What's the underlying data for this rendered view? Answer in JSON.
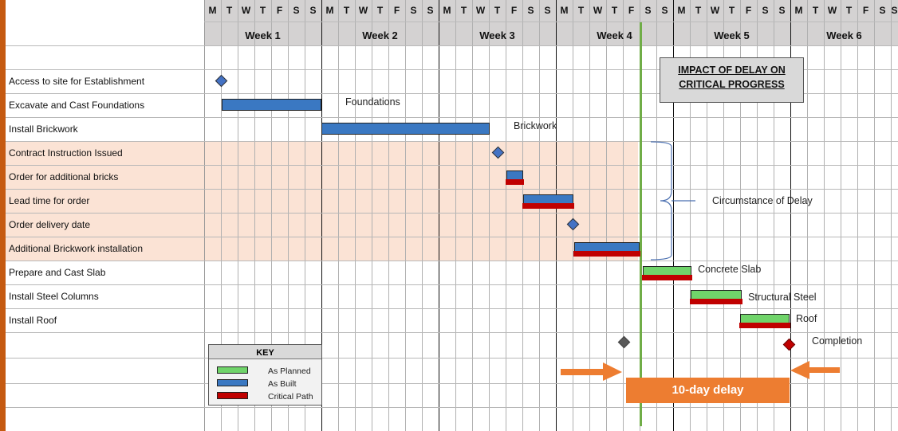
{
  "header": {
    "day_letters": [
      "M",
      "T",
      "W",
      "T",
      "F",
      "S",
      "S"
    ],
    "weeks": [
      "Week 1",
      "Week 2",
      "Week 3",
      "Week 4",
      "Week 5",
      "Week 6"
    ]
  },
  "tasks": [
    {
      "label": "Access to site for Establishment",
      "type": "milestone",
      "at": 1.05,
      "color": "#4472c4",
      "highlight": false
    },
    {
      "label": "Excavate and Cast Foundations",
      "type": "bar",
      "start": 1.05,
      "end": 7,
      "kind": "as_built",
      "annotation": "Foundations",
      "highlight": false
    },
    {
      "label": "Install Brickwork",
      "type": "bar",
      "start": 7,
      "end": 17.05,
      "kind": "as_built",
      "annotation": "Brickwork",
      "highlight": false
    },
    {
      "label": "Contract Instruction Issued",
      "type": "milestone",
      "at": 17.55,
      "color": "#4472c4",
      "highlight": true
    },
    {
      "label": "Order for additional bricks",
      "type": "bar",
      "start": 18.05,
      "end": 19.05,
      "kind": "as_built_critical",
      "highlight": true
    },
    {
      "label": "Lead time for order",
      "type": "bar",
      "start": 19.05,
      "end": 22.05,
      "kind": "as_built_critical",
      "highlight": true
    },
    {
      "label": "Order delivery date",
      "type": "milestone",
      "at": 22.05,
      "color": "#4472c4",
      "highlight": true
    },
    {
      "label": "Additional Brickwork installation",
      "type": "bar",
      "start": 22.1,
      "end": 26,
      "kind": "as_built_critical",
      "highlight": true
    },
    {
      "label": "Prepare and Cast Slab",
      "type": "bar",
      "start": 26.2,
      "end": 29.1,
      "kind": "planned_critical",
      "annotation": "Concrete Slab",
      "highlight": false
    },
    {
      "label": "Install Steel Columns",
      "type": "bar",
      "start": 29.05,
      "end": 32.1,
      "kind": "planned_critical",
      "annotation": "Structural Steel",
      "highlight": false
    },
    {
      "label": "Install Roof",
      "type": "bar",
      "start": 32,
      "end": 34.95,
      "kind": "planned_critical",
      "annotation": "Roof",
      "highlight": false
    }
  ],
  "completion": {
    "label": "Completion",
    "planned_at": 25.1,
    "actual_at": 34.95,
    "planned_color": "#595959",
    "actual_color": "#c00000"
  },
  "status_line_at": 26.05,
  "impact_title": [
    "IMPACT OF DELAY ON",
    "CRITICAL PROGRESS"
  ],
  "circumstance_label": "Circumstance of Delay",
  "delay_label": "10-day delay",
  "key": {
    "title": "KEY",
    "items": [
      {
        "label": "As Planned",
        "color": "#70d46a"
      },
      {
        "label": "As Built",
        "color": "#3a78c2"
      },
      {
        "label": "Critical Path",
        "color": "#c00000"
      }
    ]
  },
  "colors": {
    "planned": "#70d46a",
    "as_built": "#3a78c2",
    "critical": "#c00000",
    "highlight": "#fbe3d5",
    "status_line": "#70ad47",
    "delay": "#ed7d31"
  }
}
